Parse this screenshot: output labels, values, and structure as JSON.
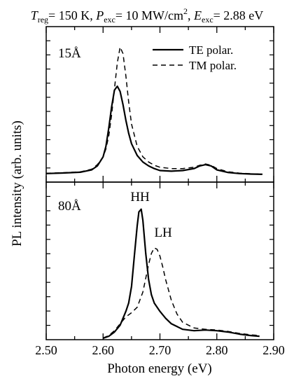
{
  "header": {
    "t_sym": "T",
    "t_sub": "reg",
    "t_val": "= 150 K, ",
    "p_sym": "P",
    "p_sub": "exc",
    "p_val": "= 10 MW/cm",
    "p_sup": "2",
    "p_sep": ", ",
    "e_sym": "E",
    "e_sub": "exc",
    "e_val": "= 2.88 eV"
  },
  "chart_data": {
    "type": "line",
    "xlabel": "Photon energy (eV)",
    "ylabel": "PL intensity (arb. units)",
    "xlim": [
      2.5,
      2.9
    ],
    "xticks": [
      2.5,
      2.6,
      2.7,
      2.8,
      2.9
    ],
    "xtick_labels": [
      "2.50",
      "2.60",
      "2.70",
      "2.80",
      "2.90"
    ],
    "legend": {
      "placement": "top-right",
      "entries": [
        {
          "label": "TE  polar.",
          "style": "solid"
        },
        {
          "label": "TM polar.",
          "style": "dashed"
        }
      ]
    },
    "panels": [
      {
        "label": "15Å",
        "ylim": [
          0,
          1.0
        ],
        "series": [
          {
            "legend_ref": "TE  polar.",
            "style": "solid",
            "x": [
              2.5,
              2.53,
              2.56,
              2.58,
              2.59,
              2.6,
              2.605,
              2.61,
              2.615,
              2.62,
              2.625,
              2.63,
              2.635,
              2.64,
              2.645,
              2.65,
              2.66,
              2.67,
              2.68,
              2.69,
              2.7,
              2.72,
              2.74,
              2.76,
              2.77,
              2.78,
              2.79,
              2.8,
              2.82,
              2.84,
              2.86,
              2.88
            ],
            "y": [
              0.012,
              0.016,
              0.022,
              0.04,
              0.07,
              0.14,
              0.22,
              0.36,
              0.52,
              0.65,
              0.68,
              0.64,
              0.54,
              0.42,
              0.32,
              0.24,
              0.15,
              0.1,
              0.07,
              0.05,
              0.035,
              0.03,
              0.035,
              0.05,
              0.07,
              0.08,
              0.07,
              0.04,
              0.02,
              0.012,
              0.008,
              0.006
            ]
          },
          {
            "legend_ref": "TM polar.",
            "style": "dashed",
            "x": [
              2.5,
              2.53,
              2.56,
              2.58,
              2.59,
              2.6,
              2.605,
              2.61,
              2.615,
              2.62,
              2.625,
              2.63,
              2.635,
              2.64,
              2.645,
              2.65,
              2.66,
              2.67,
              2.68,
              2.69,
              2.7,
              2.72,
              2.74,
              2.76,
              2.77,
              2.78,
              2.79,
              2.8,
              2.82,
              2.84,
              2.86,
              2.88
            ],
            "y": [
              0.014,
              0.018,
              0.025,
              0.045,
              0.08,
              0.14,
              0.2,
              0.3,
              0.46,
              0.66,
              0.86,
              0.98,
              0.93,
              0.76,
              0.56,
              0.39,
              0.22,
              0.14,
              0.1,
              0.075,
              0.06,
              0.05,
              0.05,
              0.06,
              0.075,
              0.085,
              0.075,
              0.05,
              0.025,
              0.015,
              0.01,
              0.008
            ]
          }
        ]
      },
      {
        "label": "80Å",
        "ylim": [
          0,
          1.0
        ],
        "annotations": [
          {
            "text": "HH",
            "x": 2.665,
            "y": 0.99
          },
          {
            "text": "LH",
            "x": 2.695,
            "y": 0.75
          }
        ],
        "series": [
          {
            "legend_ref": "TE  polar.",
            "style": "solid",
            "x": [
              2.6,
              2.61,
              2.62,
              2.63,
              2.64,
              2.645,
              2.65,
              2.655,
              2.66,
              2.663,
              2.667,
              2.67,
              2.675,
              2.68,
              2.685,
              2.69,
              2.7,
              2.71,
              2.72,
              2.74,
              2.76,
              2.78,
              2.8,
              2.82,
              2.84,
              2.86,
              2.875
            ],
            "y": [
              0.005,
              0.02,
              0.05,
              0.1,
              0.2,
              0.26,
              0.38,
              0.6,
              0.82,
              0.92,
              0.94,
              0.86,
              0.62,
              0.43,
              0.32,
              0.26,
              0.2,
              0.15,
              0.11,
              0.07,
              0.06,
              0.065,
              0.06,
              0.05,
              0.035,
              0.025,
              0.02
            ]
          },
          {
            "legend_ref": "TM polar.",
            "style": "dashed",
            "x": [
              2.6,
              2.61,
              2.62,
              2.63,
              2.64,
              2.65,
              2.66,
              2.67,
              2.675,
              2.68,
              2.685,
              2.69,
              2.695,
              2.7,
              2.705,
              2.71,
              2.72,
              2.73,
              2.74,
              2.76,
              2.78,
              2.8,
              2.82,
              2.84,
              2.86,
              2.875
            ],
            "y": [
              0.008,
              0.025,
              0.06,
              0.11,
              0.16,
              0.19,
              0.23,
              0.34,
              0.44,
              0.54,
              0.62,
              0.66,
              0.65,
              0.6,
              0.52,
              0.43,
              0.28,
              0.18,
              0.12,
              0.08,
              0.07,
              0.065,
              0.055,
              0.04,
              0.03,
              0.025
            ]
          }
        ]
      }
    ]
  }
}
